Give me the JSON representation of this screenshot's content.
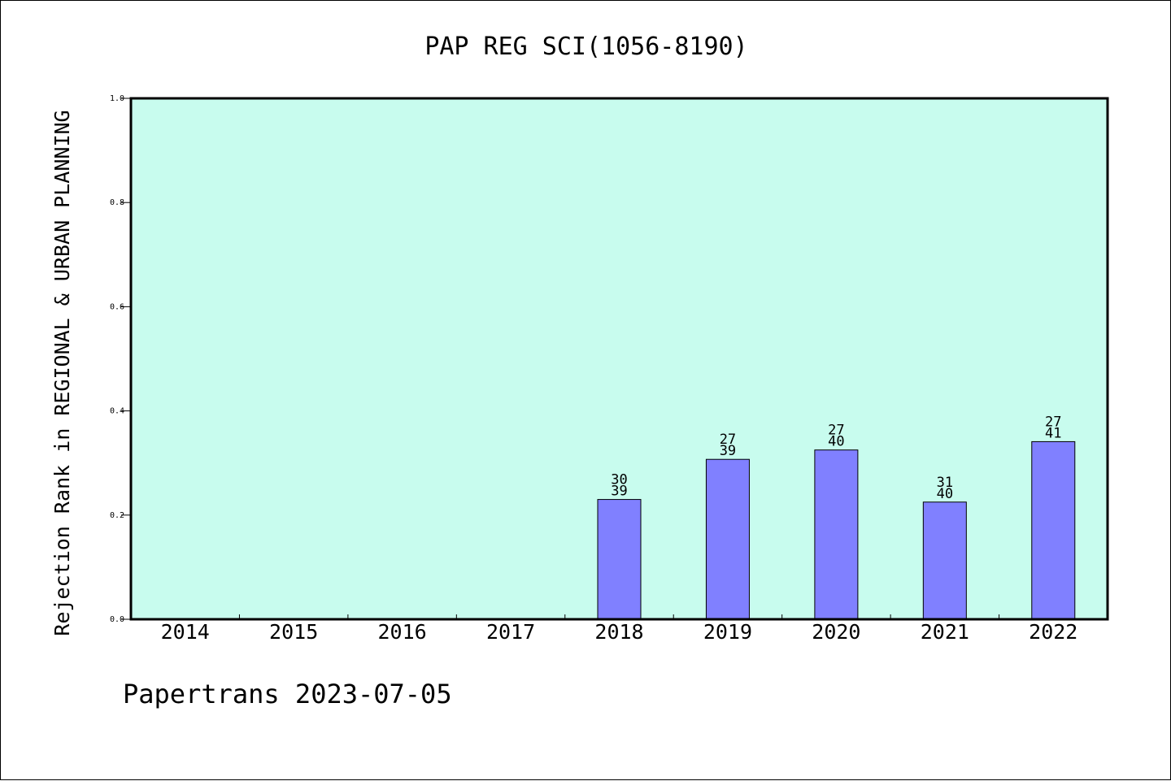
{
  "chart_data": {
    "type": "bar",
    "title": "PAP REG SCI(1056-8190)",
    "xlabel": "",
    "ylabel": "Rejection Rank in REGIONAL & URBAN PLANNING",
    "ylim": [
      0.0,
      1.0
    ],
    "yticks": [
      "0.0",
      "0.2",
      "0.4",
      "0.6",
      "0.8",
      "1.0"
    ],
    "grid": false,
    "categories": [
      "2014",
      "2015",
      "2016",
      "2017",
      "2018",
      "2019",
      "2020",
      "2021",
      "2022"
    ],
    "values": [
      null,
      null,
      null,
      null,
      0.23,
      0.307,
      0.325,
      0.225,
      0.341
    ],
    "rank_labels": [
      null,
      null,
      null,
      null,
      "30",
      "27",
      "27",
      "31",
      "27"
    ],
    "total_labels": [
      null,
      null,
      null,
      null,
      "39",
      "39",
      "40",
      "40",
      "41"
    ]
  },
  "footer": "Papertrans 2023-07-05",
  "colors": {
    "plot_background": "#c8fcee",
    "bar_fill": "#8080ff",
    "axis": "#000000"
  }
}
